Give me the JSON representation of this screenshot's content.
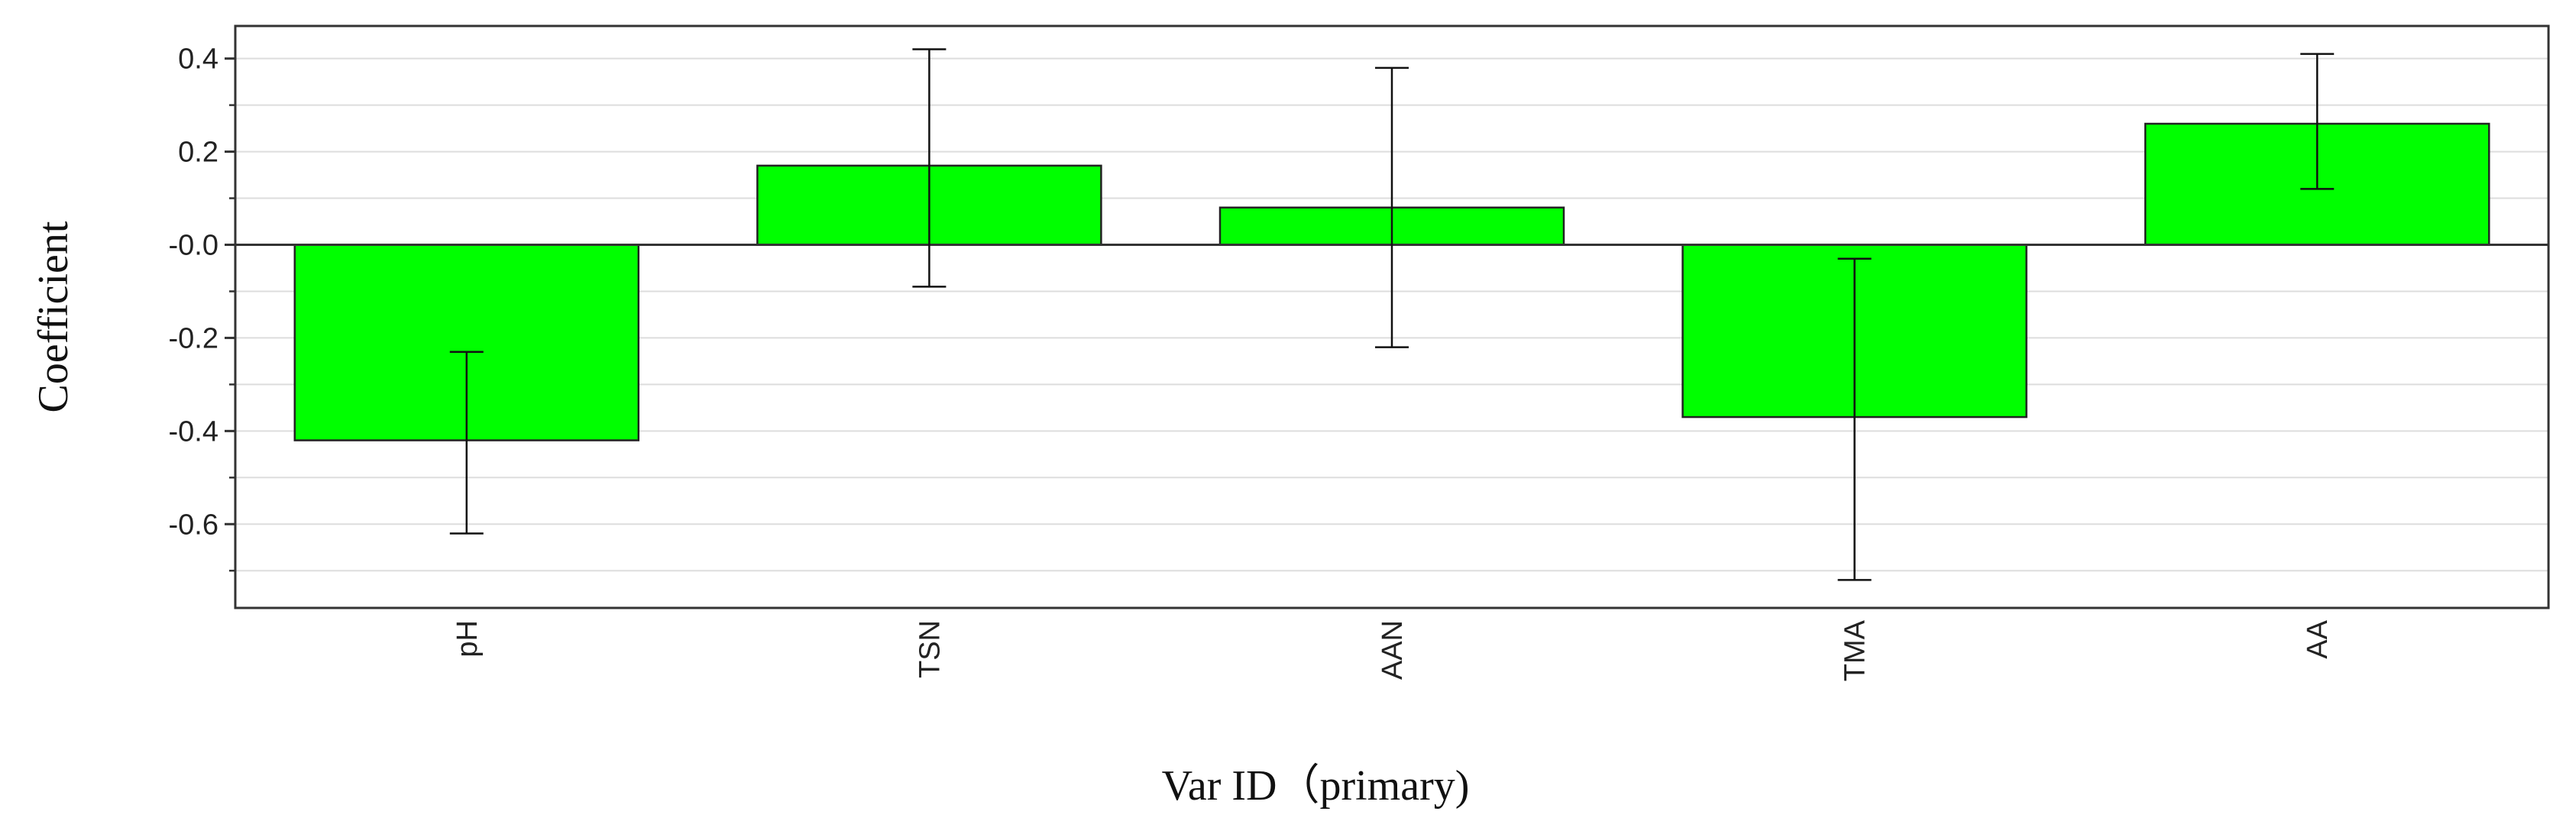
{
  "chart_data": {
    "type": "bar",
    "xlabel": "Var ID（primary)",
    "ylabel": "Coefficient",
    "categories": [
      "pH",
      "TSN",
      "AAN",
      "TMA",
      "AA"
    ],
    "values": [
      -0.42,
      0.17,
      0.08,
      -0.37,
      0.26
    ],
    "error_low": [
      -0.62,
      -0.09,
      -0.22,
      -0.72,
      0.12
    ],
    "error_high": [
      -0.23,
      0.42,
      0.38,
      -0.03,
      0.41
    ],
    "ylim": [
      -0.78,
      0.47
    ],
    "yticks": [
      0.4,
      0.2,
      0.0,
      -0.2,
      -0.4,
      -0.6
    ],
    "ytick_labels": [
      "0.4",
      "0.2",
      "-0.0",
      "-0.2",
      "-0.4",
      "-0.6"
    ],
    "grid": true,
    "colors": {
      "bar": "#00ff00",
      "bar_edge": "#222222",
      "grid": "#dddddd",
      "axis": "#333333"
    }
  }
}
